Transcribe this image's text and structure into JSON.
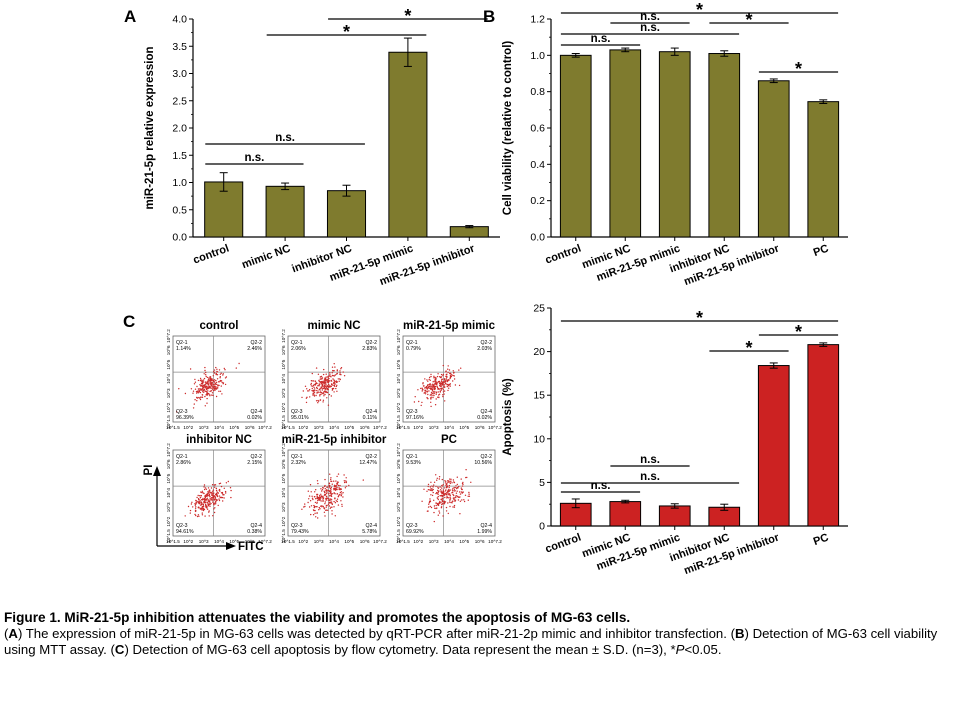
{
  "panels": {
    "A": {
      "letter": "A"
    },
    "B": {
      "letter": "B"
    },
    "C": {
      "letter": "C",
      "ylabel": "PI",
      "xlabel": "FITC"
    }
  },
  "colors": {
    "olive": "#7f7b2e",
    "red": "#cc2222",
    "flow_dots": "#cc2a2a"
  },
  "chart_data": [
    {
      "id": "A",
      "type": "bar",
      "categories": [
        "control",
        "mimic NC",
        "inhibitor NC",
        "miR-21-5p mimic",
        "miR-21-5p inhibitor"
      ],
      "values": [
        1.01,
        0.93,
        0.85,
        3.39,
        0.19
      ],
      "errors": [
        0.17,
        0.06,
        0.1,
        0.26,
        0.02
      ],
      "ylabel": "miR-21-5p relative expression",
      "ylim": [
        0,
        4.0
      ],
      "yticks": [
        "0.0",
        "0.5",
        "1.0",
        "1.5",
        "2.0",
        "2.5",
        "3.0",
        "3.5",
        "4.0"
      ],
      "color": "#7f7b2e",
      "annotations": [
        {
          "text": "n.s.",
          "from": 0,
          "to": 1
        },
        {
          "text": "n.s.",
          "from": 0,
          "to": 2
        },
        {
          "text": "*",
          "from": 1,
          "to": 3
        },
        {
          "text": "*",
          "from": 2,
          "to": 4
        }
      ]
    },
    {
      "id": "B",
      "type": "bar",
      "categories": [
        "control",
        "mimic NC",
        "miR-21-5p mimic",
        "inhibitor NC",
        "miR-21-5p inhibitor",
        "PC"
      ],
      "values": [
        1.0,
        1.03,
        1.02,
        1.01,
        0.86,
        0.745
      ],
      "errors": [
        0.01,
        0.01,
        0.02,
        0.015,
        0.01,
        0.01
      ],
      "ylabel": "Cell viability (relative to control)",
      "ylim": [
        0,
        1.2
      ],
      "yticks": [
        "0.0",
        "0.2",
        "0.4",
        "0.6",
        "0.8",
        "1.0",
        "1.2"
      ],
      "color": "#7f7b2e",
      "annotations": [
        {
          "text": "n.s.",
          "from": 0,
          "to": 1
        },
        {
          "text": "n.s.",
          "from": 1,
          "to": 2
        },
        {
          "text": "n.s.",
          "from": 0,
          "to": 3
        },
        {
          "text": "*",
          "from": 3,
          "to": 4
        },
        {
          "text": "*",
          "from": 4,
          "to": 5
        },
        {
          "text": "*",
          "from": 0,
          "to": 5
        }
      ]
    },
    {
      "id": "C2",
      "type": "bar",
      "categories": [
        "control",
        "mimic NC",
        "miR-21-5p mimic",
        "inhibitor NC",
        "miR-21-5p inhibitor",
        "PC"
      ],
      "values": [
        2.6,
        2.8,
        2.3,
        2.15,
        18.4,
        20.8
      ],
      "errors": [
        0.5,
        0.15,
        0.25,
        0.35,
        0.3,
        0.2
      ],
      "ylabel": "Apoptosis (%)",
      "ylim": [
        0,
        25
      ],
      "yticks": [
        "0",
        "5",
        "10",
        "15",
        "20",
        "25"
      ],
      "color": "#cc2222",
      "annotations": [
        {
          "text": "n.s.",
          "from": 0,
          "to": 1
        },
        {
          "text": "n.s.",
          "from": 1,
          "to": 2
        },
        {
          "text": "n.s.",
          "from": 0,
          "to": 3
        },
        {
          "text": "*",
          "from": 3,
          "to": 4
        },
        {
          "text": "*",
          "from": 4,
          "to": 5
        },
        {
          "text": "*",
          "from": 0,
          "to": 5
        }
      ]
    },
    {
      "id": "C1",
      "type": "scatter",
      "xlabel": "FITC",
      "ylabel": "PI",
      "axis_ticks": [
        "10^1.5",
        "10^2",
        "10^3",
        "10^4",
        "10^5",
        "10^6",
        "10^7.2"
      ],
      "plots": [
        {
          "title": "control",
          "q1": "1.14%",
          "q2": "2.46%",
          "q3": "96.39%",
          "q4": "0.02%",
          "spread": 0.25
        },
        {
          "title": "mimic NC",
          "q1": "2.06%",
          "q2": "2.83%",
          "q3": "95.01%",
          "q4": "0.11%",
          "spread": 0.3
        },
        {
          "title": "miR-21-5p mimic",
          "q1": "0.79%",
          "q2": "2.03%",
          "q3": "97.16%",
          "q4": "0.02%",
          "spread": 0.22
        },
        {
          "title": "inhibitor NC",
          "q1": "2.86%",
          "q2": "2.15%",
          "q3": "94.61%",
          "q4": "0.38%",
          "spread": 0.25
        },
        {
          "title": "miR-21-5p inhibitor",
          "q1": "2.32%",
          "q2": "12.47%",
          "q3": "79.43%",
          "q4": "5.78%",
          "spread": 0.5
        },
        {
          "title": "PC",
          "q1": "9.53%",
          "q2": "10.56%",
          "q3": "69.92%",
          "q4": "1.99%",
          "spread": 0.6
        }
      ]
    }
  ],
  "caption": {
    "title": "Figure 1. MiR-21-5p inhibition attenuates the viability and promotes the apoptosis of MG-63 cells.",
    "parts": [
      {
        "t": "(",
        "s": ""
      },
      {
        "t": "A",
        "s": "b"
      },
      {
        "t": ") The expression of miR-21-5p in MG-63 cells was detected by qRT-PCR after miR-21-2p mimic and inhibitor transfection. (",
        "s": ""
      },
      {
        "t": "B",
        "s": "b"
      },
      {
        "t": ") Detection of MG-63 cell viability using MTT assay. (",
        "s": ""
      },
      {
        "t": "C",
        "s": "b"
      },
      {
        "t": ") Detection of MG-63 cell apoptosis by flow cytometry. Data represent the mean ± S.D. (n=3), *",
        "s": ""
      },
      {
        "t": "P",
        "s": "i"
      },
      {
        "t": "<0.05.",
        "s": ""
      }
    ]
  }
}
